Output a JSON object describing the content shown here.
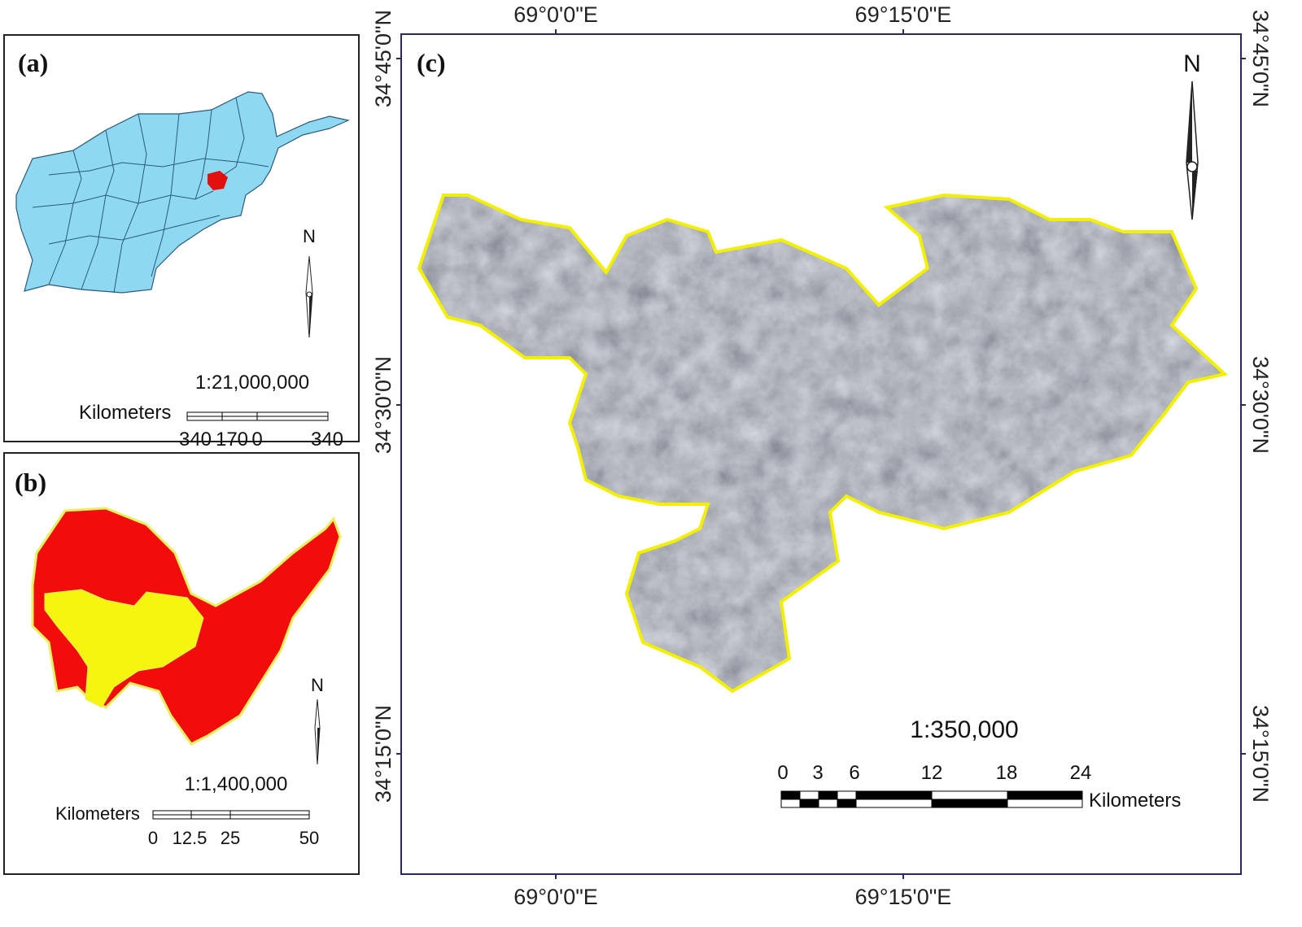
{
  "panel_a": {
    "label": "(a)",
    "north": "N",
    "scale": "1:21,000,000",
    "units": "Kilometers",
    "scale_ticks": [
      "340",
      "170",
      "0",
      "340"
    ]
  },
  "panel_b": {
    "label": "(b)",
    "north": "N",
    "scale": "1:1,400,000",
    "units": "Kilometers",
    "scale_ticks": [
      "0",
      "12.5",
      "25",
      "50"
    ]
  },
  "panel_c": {
    "label": "(c)",
    "north": "N",
    "scale": "1:350,000",
    "units": "Kilometers",
    "scale_ticks": [
      "0",
      "3",
      "6",
      "12",
      "18",
      "24"
    ],
    "top_longitudes": [
      "69°0'0\"E",
      "69°15'0\"E"
    ],
    "bottom_longitudes": [
      "69°0'0\"E",
      "69°15'0\"E"
    ],
    "left_latitudes": [
      "34°45'0\"N",
      "34°30'0\"N",
      "34°15'0\"N"
    ],
    "right_latitudes": [
      "34°45'0\"N",
      "34°30'0\"N",
      "34°15'0\"N"
    ]
  }
}
